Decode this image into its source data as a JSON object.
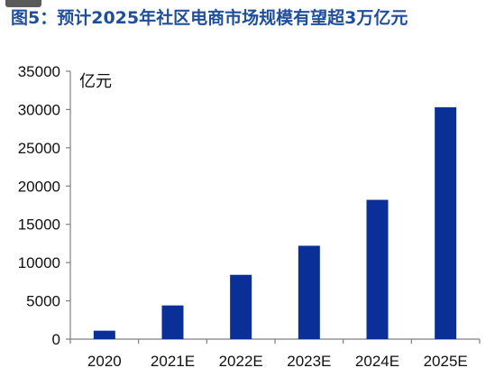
{
  "figure": {
    "title": "图5：预计2025年社区电商市场规模有望超3万亿元"
  },
  "colors": {
    "bar": "#0a2f96",
    "title": "#1f4e9a",
    "axis": "#7f7f7f"
  },
  "chart_data": {
    "type": "bar",
    "title": "图5：预计2025年社区电商市场规模有望超3万亿元",
    "xlabel": "",
    "ylabel": "亿元",
    "categories": [
      "2020",
      "2021E",
      "2022E",
      "2023E",
      "2024E",
      "2025E"
    ],
    "values": [
      1100,
      4400,
      8400,
      12200,
      18200,
      30300
    ],
    "ylim": [
      0,
      35000
    ],
    "yticks": [
      0,
      5000,
      10000,
      15000,
      20000,
      25000,
      30000,
      35000
    ],
    "grid": false,
    "legend": "none"
  }
}
